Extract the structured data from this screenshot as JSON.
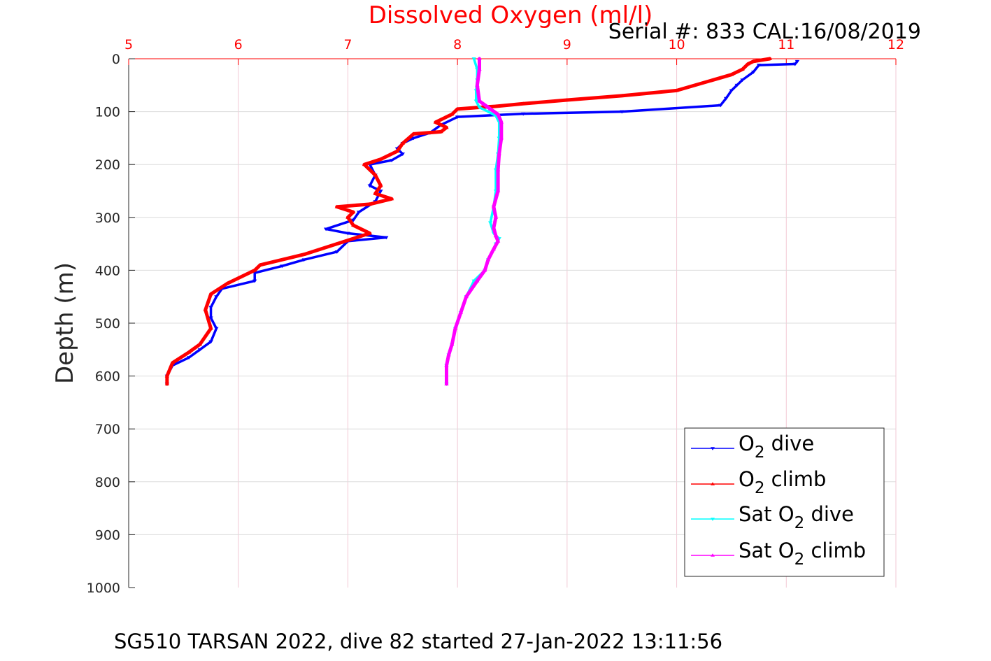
{
  "chart_data": {
    "type": "line",
    "title": "Dissolved Oxygen (ml/l)",
    "serial_text": "Serial #: 833  CAL:16/08/2019",
    "footer_text": "SG510 TARSAN 2022, dive 82 started 27-Jan-2022 13:11:56",
    "xlabel": "",
    "ylabel": "Depth (m)",
    "xlim": [
      5,
      12
    ],
    "ylim": [
      0,
      1000
    ],
    "x_ticks": [
      5,
      6,
      7,
      8,
      9,
      10,
      11,
      12
    ],
    "y_ticks": [
      0,
      100,
      200,
      300,
      400,
      500,
      600,
      700,
      800,
      900,
      1000
    ],
    "y_reversed": true,
    "grid": true,
    "legend_position": "bottom-right",
    "colors": {
      "title": "#ff0000",
      "x_ticks": "#ff0000",
      "grid": "#f2c8d4",
      "axis": "#000000"
    },
    "series": [
      {
        "name": "O2 dive",
        "legend_label": {
          "pre": "O",
          "sub": "2",
          "post": " dive"
        },
        "color": "#0000ff",
        "marker": "triangle-down",
        "x": [
          11.1,
          11.08,
          10.75,
          10.7,
          10.6,
          10.55,
          10.5,
          10.45,
          10.4,
          9.5,
          8.6,
          8.0,
          7.85,
          7.75,
          7.6,
          7.5,
          7.45,
          7.5,
          7.4,
          7.2,
          7.25,
          7.2,
          7.3,
          7.25,
          7.1,
          7.05,
          6.8,
          7.0,
          7.35,
          7.0,
          6.9,
          6.6,
          6.4,
          6.15,
          6.15,
          5.85,
          5.8,
          5.75,
          5.75,
          5.8,
          5.75,
          5.65,
          5.55,
          5.4,
          5.35,
          5.35
        ],
        "y": [
          5,
          10,
          12,
          25,
          40,
          50,
          60,
          75,
          88,
          100,
          104,
          110,
          125,
          140,
          150,
          160,
          170,
          180,
          192,
          200,
          220,
          240,
          250,
          270,
          290,
          305,
          322,
          330,
          338,
          345,
          365,
          380,
          392,
          405,
          420,
          435,
          450,
          470,
          490,
          510,
          535,
          550,
          565,
          580,
          600,
          615
        ]
      },
      {
        "name": "O2 climb",
        "legend_label": {
          "pre": "O",
          "sub": "2",
          "post": " climb"
        },
        "color": "#ff0000",
        "marker": "triangle-up",
        "x": [
          10.85,
          10.7,
          10.65,
          10.6,
          10.5,
          10.0,
          9.5,
          9.0,
          8.6,
          8.35,
          8.2,
          8.0,
          7.95,
          7.8,
          7.9,
          7.85,
          7.6,
          7.5,
          7.45,
          7.3,
          7.15,
          7.25,
          7.3,
          7.25,
          7.4,
          7.2,
          6.9,
          7.05,
          7.0,
          7.05,
          7.2,
          6.9,
          6.6,
          6.2,
          6.15,
          5.9,
          5.75,
          5.7,
          5.75,
          5.65,
          5.55,
          5.4,
          5.35,
          5.35
        ],
        "y": [
          0,
          5,
          10,
          20,
          30,
          60,
          70,
          78,
          85,
          90,
          92,
          95,
          105,
          120,
          130,
          138,
          142,
          160,
          175,
          190,
          200,
          220,
          240,
          255,
          265,
          275,
          280,
          290,
          300,
          315,
          330,
          350,
          370,
          390,
          400,
          425,
          445,
          475,
          510,
          540,
          555,
          575,
          600,
          615
        ]
      },
      {
        "name": "Sat O2 dive",
        "legend_label": {
          "pre": "Sat O",
          "sub": "2",
          "post": " dive"
        },
        "color": "#00ffff",
        "marker": "triangle-down",
        "x": [
          8.15,
          8.18,
          8.18,
          8.17,
          8.17,
          8.2,
          8.28,
          8.35,
          8.38,
          8.38,
          8.37,
          8.35,
          8.35,
          8.33,
          8.3,
          8.33,
          8.38,
          8.35,
          8.28,
          8.25,
          8.15,
          8.08,
          8.03,
          7.98,
          7.95,
          7.92,
          7.9,
          7.9
        ],
        "y": [
          0,
          20,
          40,
          60,
          80,
          92,
          100,
          108,
          120,
          150,
          180,
          210,
          250,
          280,
          310,
          330,
          340,
          350,
          380,
          400,
          420,
          450,
          480,
          510,
          540,
          560,
          580,
          615
        ]
      },
      {
        "name": "Sat O2 climb",
        "legend_label": {
          "pre": "Sat O",
          "sub": "2",
          "post": " climb"
        },
        "color": "#ff00ff",
        "marker": "triangle-up",
        "x": [
          8.2,
          8.2,
          8.18,
          8.2,
          8.3,
          8.37,
          8.4,
          8.4,
          8.38,
          8.37,
          8.37,
          8.33,
          8.35,
          8.33,
          8.35,
          8.37,
          8.33,
          8.28,
          8.25,
          8.18,
          8.08,
          8.03,
          7.98,
          7.95,
          7.92,
          7.9,
          7.9
        ],
        "y": [
          0,
          20,
          50,
          80,
          95,
          105,
          120,
          150,
          180,
          210,
          250,
          280,
          300,
          320,
          335,
          345,
          360,
          380,
          400,
          420,
          450,
          480,
          510,
          540,
          560,
          580,
          615
        ]
      }
    ]
  }
}
